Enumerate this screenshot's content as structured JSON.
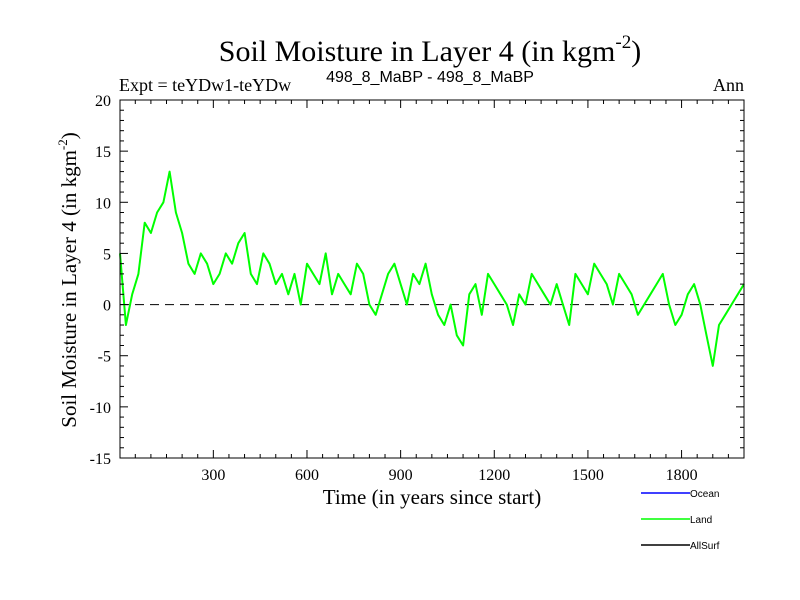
{
  "chart_data": {
    "type": "line",
    "title": "Soil Moisture in Layer 4 (in kgm",
    "title_superscript": "-2",
    "title_close": ")",
    "subtitle_left": "Expt = teYDw1-teYDw",
    "subtitle_center": "498_8_MaBP - 498_8_MaBP",
    "subtitle_right": "Ann",
    "xlabel": "Time (in years since start)",
    "ylabel": "Soil Moisture in Layer 4 (in kgm",
    "ylabel_superscript": "-2",
    "ylabel_close": ")",
    "xlim": [
      1,
      2000
    ],
    "ylim": [
      -15,
      20
    ],
    "x_ticks": [
      300,
      600,
      900,
      1200,
      1500,
      1800
    ],
    "x_tick_labels": [
      "300",
      "600",
      "900",
      "1200",
      "1500",
      "1800"
    ],
    "y_ticks": [
      -15,
      -10,
      -5,
      0,
      5,
      10,
      15,
      20
    ],
    "y_tick_labels": [
      "-15",
      "-10",
      "-5",
      "0",
      "5",
      "10",
      "15",
      "20"
    ],
    "zero_line": 0,
    "legend": [
      {
        "name": "Ocean",
        "color": "#0000ff"
      },
      {
        "name": "Land",
        "color": "#00ff00"
      },
      {
        "name": "AllSurf",
        "color": "#000000"
      }
    ],
    "series": [
      {
        "name": "Land",
        "color": "#00ff00",
        "x": [
          1,
          20,
          40,
          60,
          80,
          100,
          120,
          140,
          160,
          180,
          200,
          220,
          240,
          260,
          280,
          300,
          320,
          340,
          360,
          380,
          400,
          420,
          440,
          460,
          480,
          500,
          520,
          540,
          560,
          580,
          600,
          620,
          640,
          660,
          680,
          700,
          720,
          740,
          760,
          780,
          800,
          820,
          840,
          860,
          880,
          900,
          920,
          940,
          960,
          980,
          1000,
          1020,
          1040,
          1060,
          1080,
          1100,
          1120,
          1140,
          1160,
          1180,
          1200,
          1220,
          1240,
          1260,
          1280,
          1300,
          1320,
          1340,
          1360,
          1380,
          1400,
          1420,
          1440,
          1460,
          1480,
          1500,
          1520,
          1540,
          1560,
          1580,
          1600,
          1620,
          1640,
          1660,
          1680,
          1700,
          1720,
          1740,
          1760,
          1780,
          1800,
          1820,
          1840,
          1860,
          1880,
          1900,
          1920,
          1940,
          1960,
          1980,
          2000
        ],
        "values": [
          5,
          -2,
          1,
          3,
          8,
          7,
          9,
          10,
          13,
          9,
          7,
          4,
          3,
          5,
          4,
          2,
          3,
          5,
          4,
          6,
          7,
          3,
          2,
          5,
          4,
          2,
          3,
          1,
          3,
          0,
          4,
          3,
          2,
          5,
          1,
          3,
          2,
          1,
          4,
          3,
          0,
          -1,
          1,
          3,
          4,
          2,
          0,
          3,
          2,
          4,
          1,
          -1,
          -2,
          0,
          -3,
          -4,
          1,
          2,
          -1,
          3,
          2,
          1,
          0,
          -2,
          1,
          0,
          3,
          2,
          1,
          0,
          2,
          0,
          -2,
          3,
          2,
          1,
          4,
          3,
          2,
          0,
          3,
          2,
          1,
          -1,
          0,
          1,
          2,
          3,
          0,
          -2,
          -1,
          1,
          2,
          0,
          -3,
          -6,
          -2,
          -1,
          0,
          1,
          2
        ]
      },
      {
        "name": "Ocean",
        "color": "#0000ff",
        "x": [],
        "values": []
      },
      {
        "name": "AllSurf",
        "color": "#000000",
        "x": [],
        "values": []
      }
    ]
  }
}
